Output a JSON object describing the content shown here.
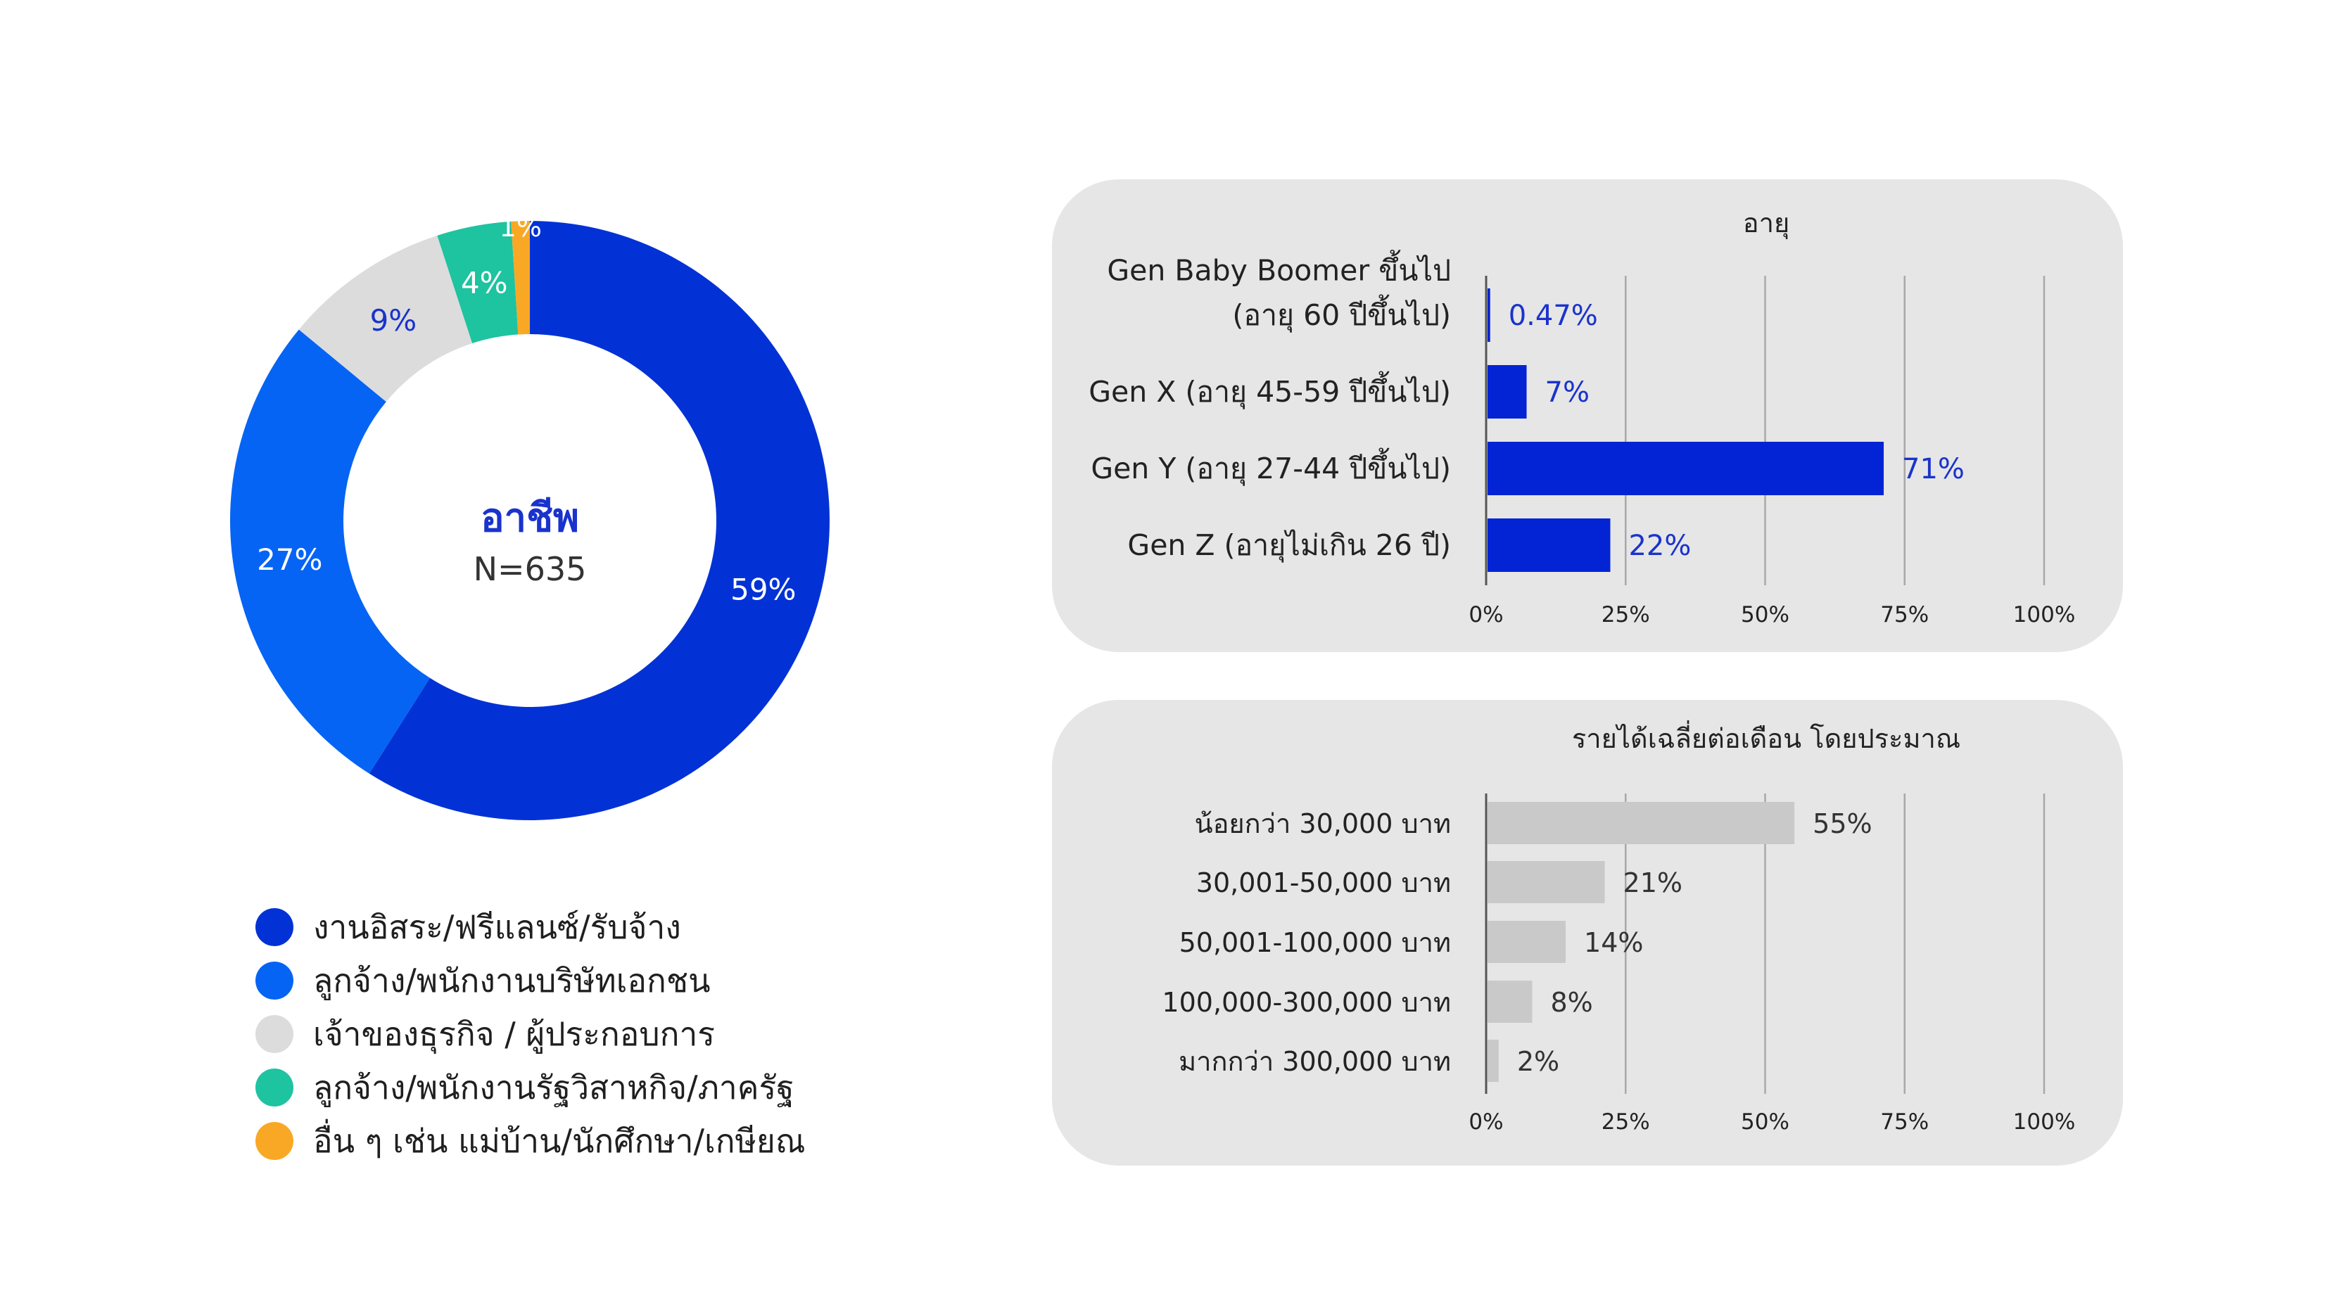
{
  "chart_data": [
    {
      "type": "pie",
      "title": "อาชีพ",
      "subtitle": "N=635",
      "slices": [
        {
          "label": "งานอิสระ/ฟรีแลนซ์/รับจ้าง",
          "value": 59,
          "display": "59%",
          "color": "#0232d5"
        },
        {
          "label": "ลูกจ้าง/พนักงานบริษัทเอกชน",
          "value": 27,
          "display": "27%",
          "color": "#0664f4"
        },
        {
          "label": "เจ้าของธุรกิจ / ผู้ประกอบการ",
          "value": 9,
          "display": "9%",
          "color": "#dcdcdc"
        },
        {
          "label": "ลูกจ้าง/พนักงานรัฐวิสาหกิจ/ภาครัฐ",
          "value": 4,
          "display": "4%",
          "color": "#1ec3a0"
        },
        {
          "label": "อื่น ๆ เช่น แม่บ้าน/นักศึกษา/เกษียณ",
          "value": 1,
          "display": "1%",
          "color": "#f9a825"
        }
      ]
    },
    {
      "type": "bar",
      "orientation": "horizontal",
      "title": "อายุ",
      "categories": [
        [
          "Gen Baby Boomer ขึ้นไป",
          "(อายุ 60 ปีขึ้นไป)"
        ],
        [
          "Gen X (อายุ 45-59 ปีขึ้นไป)"
        ],
        [
          "Gen Y (อายุ 27-44 ปีขึ้นไป)"
        ],
        [
          "Gen Z (อายุไม่เกิน 26 ปี)"
        ]
      ],
      "values": [
        0.47,
        7,
        71,
        22
      ],
      "value_labels": [
        "0.47%",
        "7%",
        "71%",
        "22%"
      ],
      "xlim": [
        0,
        100
      ],
      "ticks": [
        "0%",
        "25%",
        "50%",
        "75%",
        "100%"
      ],
      "grid": true,
      "bar_color": "#0224d4",
      "label_color": "#1a33cc"
    },
    {
      "type": "bar",
      "orientation": "horizontal",
      "title": "รายได้เฉลี่ยต่อเดือน โดยประมาณ",
      "categories": [
        [
          "น้อยกว่า 30,000 บาท"
        ],
        [
          "30,001-50,000 บาท"
        ],
        [
          "50,001-100,000 บาท"
        ],
        [
          "100,000-300,000 บาท"
        ],
        [
          "มากกว่า 300,000 บาท"
        ]
      ],
      "values": [
        55,
        21,
        14,
        8,
        2
      ],
      "value_labels": [
        "55%",
        "21%",
        "14%",
        "8%",
        "2%"
      ],
      "xlim": [
        0,
        100
      ],
      "ticks": [
        "0%",
        "25%",
        "50%",
        "75%",
        "100%"
      ],
      "grid": true,
      "bar_color": "#c9c9c9",
      "label_color": "#333333"
    }
  ]
}
